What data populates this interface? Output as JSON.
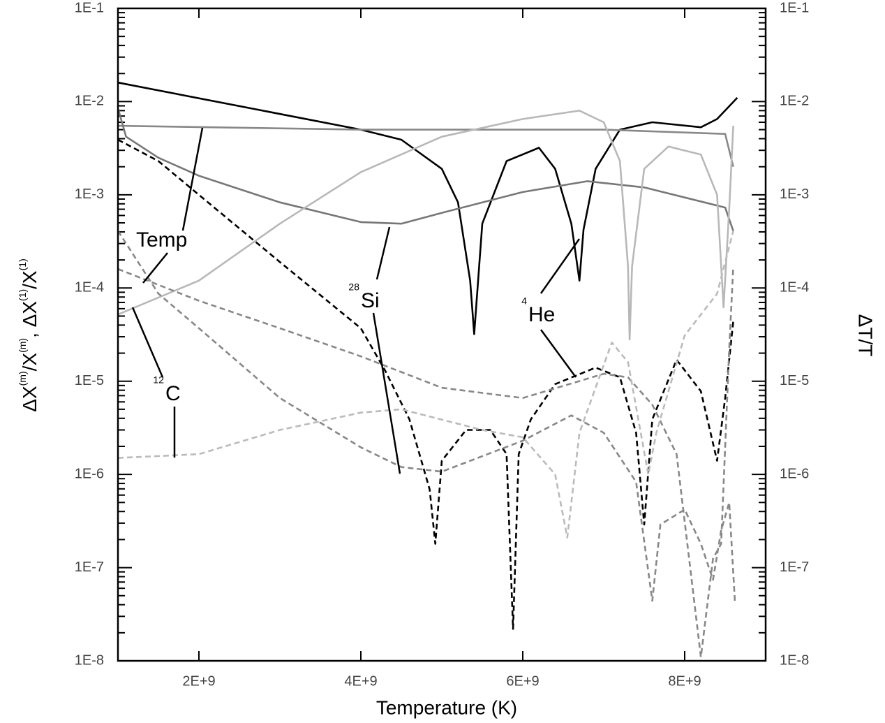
{
  "chart_data": {
    "type": "line",
    "xlabel": "Temperature (K)",
    "ylabel_parts": [
      {
        "text": "ΔX"
      },
      {
        "text": "(m)",
        "sup": true
      },
      {
        "text": "/X"
      },
      {
        "text": "(m)",
        "sup": true
      },
      {
        "text": ", ΔX"
      },
      {
        "text": "(1)",
        "sup": true
      },
      {
        "text": "/X"
      },
      {
        "text": "(1)",
        "sup": true
      }
    ],
    "y2label": "ΔT/T",
    "xlim": [
      1000000000.0,
      9000000000.0
    ],
    "xticks": [
      {
        "value": 2000000000.0,
        "label": "2E+9"
      },
      {
        "value": 4000000000.0,
        "label": "4E+9"
      },
      {
        "value": 6000000000.0,
        "label": "6E+9"
      },
      {
        "value": 8000000000.0,
        "label": "8E+9"
      }
    ],
    "ylim": [
      1e-08,
      0.1
    ],
    "log_y": true,
    "yticks": [
      {
        "value": 1e-08,
        "label": "1E-8"
      },
      {
        "value": 1e-07,
        "label": "1E-7"
      },
      {
        "value": 1e-06,
        "label": "1E-6"
      },
      {
        "value": 1e-05,
        "label": "1E-5"
      },
      {
        "value": 0.0001,
        "label": "1E-4"
      },
      {
        "value": 0.001,
        "label": "1E-3"
      },
      {
        "value": 0.01,
        "label": "1E-2"
      },
      {
        "value": 0.1,
        "label": "1E-1"
      }
    ],
    "y2lim": [
      1e-08,
      0.1
    ],
    "y2ticks": [
      {
        "value": 1e-08,
        "label": "1E-8"
      },
      {
        "value": 1e-07,
        "label": "1E-7"
      },
      {
        "value": 1e-06,
        "label": "1E-6"
      },
      {
        "value": 1e-05,
        "label": "1E-5"
      },
      {
        "value": 0.0001,
        "label": "1E-4"
      },
      {
        "value": 0.001,
        "label": "1E-3"
      },
      {
        "value": 0.01,
        "label": "1E-2"
      },
      {
        "value": 0.1,
        "label": "1E-1"
      }
    ],
    "annotations": [
      {
        "text": "Temp"
      },
      {
        "sup": "28",
        "text": "Si"
      },
      {
        "sup": "4",
        "text": "He"
      },
      {
        "sup": "12",
        "text": "C"
      }
    ],
    "series": [
      {
        "color": "#000000",
        "dashed": false,
        "x": [
          1000000000.0,
          4000000000.0,
          4500000000.0,
          5000000000.0,
          5200000000.0,
          5350000000.0,
          5400000000.0,
          5500000000.0,
          5800000000.0,
          6200000000.0,
          6400000000.0,
          6600000000.0,
          6700000000.0,
          6750000000.0,
          6900000000.0,
          7200000000.0,
          7600000000.0,
          8200000000.0,
          8400000000.0,
          8650000000.0
        ],
        "values": [
          0.016,
          0.005,
          0.0039,
          0.0019,
          0.00083,
          0.00012,
          3.2e-05,
          0.00049,
          0.0023,
          0.0032,
          0.0019,
          0.00049,
          0.00012,
          0.00042,
          0.0019,
          0.005,
          0.006,
          0.0053,
          0.0065,
          0.011
        ]
      },
      {
        "color": "#888888",
        "dashed": false,
        "x": [
          1000000000.0,
          4000000000.0,
          7000000000.0,
          8500000000.0,
          8600000000.0
        ],
        "values": [
          0.0055,
          0.005,
          0.005,
          0.0045,
          0.002
        ]
      },
      {
        "color": "#777777",
        "dashed": false,
        "x": [
          1000000000.0,
          1100000000.0,
          1500000000.0,
          2000000000.0,
          3000000000.0,
          4000000000.0,
          4500000000.0,
          5000000000.0,
          6000000000.0,
          6800000000.0,
          7500000000.0,
          8500000000.0,
          8600000000.0
        ],
        "values": [
          0.0085,
          0.0042,
          0.0025,
          0.0016,
          0.00083,
          0.00051,
          0.00049,
          0.00064,
          0.00107,
          0.0014,
          0.0012,
          0.00073,
          0.00041
        ]
      },
      {
        "color": "#b8b8b8",
        "dashed": false,
        "x": [
          1000000000.0,
          2000000000.0,
          3000000000.0,
          4000000000.0,
          5000000000.0,
          6000000000.0,
          6700000000.0,
          7000000000.0,
          7200000000.0,
          7300000000.0,
          7320000000.0,
          7350000000.0,
          7500000000.0,
          7800000000.0,
          8200000000.0,
          8400000000.0,
          8480000000.0,
          8550000000.0,
          8600000000.0
        ],
        "values": [
          5.2e-05,
          0.00012,
          0.00049,
          0.00175,
          0.0042,
          0.0065,
          0.008,
          0.006,
          0.0023,
          0.00017,
          2.8e-05,
          0.00017,
          0.0019,
          0.0033,
          0.0027,
          0.001,
          6.2e-05,
          0.0007,
          0.0055
        ]
      },
      {
        "color": "#000000",
        "dashed": true,
        "x": [
          1000000000.0,
          1500000000.0,
          2000000000.0,
          3000000000.0,
          4000000000.0,
          4300000000.0,
          4600000000.0,
          4850000000.0,
          4920000000.0,
          5000000000.0,
          5300000000.0,
          5600000000.0,
          5800000000.0,
          5880000000.0,
          5950000000.0,
          6100000000.0,
          6400000000.0,
          6900000000.0,
          7200000000.0,
          7400000000.0,
          7500000000.0,
          7600000000.0,
          7900000000.0,
          8200000000.0,
          8400000000.0,
          8500000000.0,
          8600000000.0
        ],
        "values": [
          0.0039,
          0.0023,
          0.001,
          0.00019,
          3.7e-05,
          1.3e-05,
          3.9e-06,
          6.9e-07,
          1.8e-07,
          1.4e-06,
          3e-06,
          3e-06,
          1.65e-06,
          2.2e-08,
          1.65e-06,
          3.9e-06,
          9.3e-06,
          1.4e-05,
          1.1e-05,
          2.8e-06,
          2.9e-07,
          3.9e-06,
          1.7e-05,
          7.8e-06,
          1.4e-06,
          6.6e-06,
          4.4e-05
        ]
      },
      {
        "color": "#888888",
        "dashed": true,
        "x": [
          1000000000.0,
          2000000000.0,
          3000000000.0,
          4000000000.0,
          5000000000.0,
          6000000000.0,
          7000000000.0,
          7300000000.0,
          7600000000.0,
          7900000000.0,
          8200000000.0,
          8350000000.0,
          8450000000.0,
          8550000000.0,
          8600000000.0
        ],
        "values": [
          0.00016,
          7.3e-05,
          3.7e-05,
          1.85e-05,
          8.5e-06,
          6.6e-06,
          1.2e-05,
          1.1e-05,
          5.6e-06,
          1.65e-06,
          1.1e-08,
          1.25e-07,
          1.8e-07,
          2.2e-05,
          0.00017
        ]
      },
      {
        "color": "#888888",
        "dashed": true,
        "x": [
          1000000000.0,
          1500000000.0,
          2000000000.0,
          3000000000.0,
          4000000000.0,
          4500000000.0,
          5000000000.0,
          6000000000.0,
          6600000000.0,
          7000000000.0,
          7400000000.0,
          7600000000.0,
          7700000000.0,
          8000000000.0,
          8200000000.0,
          8350000000.0,
          8450000000.0,
          8550000000.0,
          8620000000.0
        ],
        "values": [
          0.00041,
          8.7e-05,
          3.7e-05,
          6.6e-06,
          1.95e-06,
          1.2e-06,
          1.07e-06,
          2.3e-06,
          4.3e-06,
          2.8e-06,
          8.3e-07,
          4.4e-08,
          2.9e-07,
          4.2e-07,
          1.8e-07,
          7.4e-08,
          2.5e-07,
          5e-07,
          4.4e-08
        ]
      },
      {
        "color": "#bbbbbb",
        "dashed": true,
        "x": [
          1000000000.0,
          2000000000.0,
          3000000000.0,
          4000000000.0,
          4500000000.0,
          5500000000.0,
          6000000000.0,
          6400000000.0,
          6550000000.0,
          6700000000.0,
          7100000000.0,
          7300000000.0,
          7550000000.0,
          7650000000.0,
          8000000000.0,
          8400000000.0,
          8600000000.0
        ],
        "values": [
          1.5e-06,
          1.65e-06,
          3e-06,
          4.6e-06,
          5e-06,
          3e-06,
          2.5e-06,
          1e-06,
          2.1e-07,
          2.8e-06,
          2.6e-05,
          1.6e-05,
          1e-06,
          2.8e-06,
          3.1e-05,
          8.7e-05,
          0.00041
        ]
      }
    ]
  }
}
